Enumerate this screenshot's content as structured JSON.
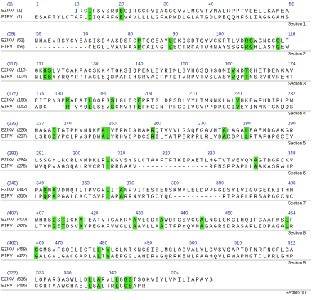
{
  "identical_color": "#4ddc2a",
  "sections": [
    {
      "label": "Section 1",
      "start": "(1)",
      "ticks": [
        1,
        10,
        20,
        30,
        40,
        58
      ],
      "rows": [
        {
          "name": "EZIKV",
          "pos": "(1)",
          "seq": "---------IRCIFSVSRDEGIRGCRVIAGGGVVLMGVTVMALRPPTVDELLKAMEA"
        },
        {
          "name": "E1RV",
          "pos": "(1)",
          "seq": "ESAFTYLCTAFLIIQARFGEVAVLLLLGFAPWDLGLATGDLPEQQHFSLIAGGGAHS"
        }
      ]
    },
    {
      "label": "Section 2",
      "start": "(59)",
      "ticks": [
        59,
        70,
        80,
        90,
        100,
        116
      ],
      "rows": [
        {
          "name": "EZIKV",
          "pos": "(52)",
          "seq": "NHAEVRSYCYEASISDMASDSRCPTQGEAYLDKQSDTQYVCKRTLVDRGWGNGCGLF"
        },
        {
          "name": "E1RV",
          "pos": "(59)",
          "seq": "------------CEGLLVAVPAAPCAINGTLECTRCATVHNAYSSGGRGHLASYGEW"
        }
      ]
    },
    {
      "label": "Section 3",
      "start": "(117)",
      "ticks": [
        117,
        130,
        140,
        150,
        160,
        174
      ],
      "rows": [
        {
          "name": "EZIKV",
          "pos": "(110)",
          "seq": "GKGSLVTCAKFACSKKMTGKSIQPENLEYRIMLSVHGSQHSGMIVNDTGHETDENKAV"
        },
        {
          "name": "E1RV",
          "pos": "(104)",
          "seq": "NLGSYYRQYRPTACLEQDPAFCHSRVAGFPTDTVRPVTVSLASYVQPTNSRVRVREHT"
        }
      ]
    },
    {
      "label": "Section 4",
      "start": "(175)",
      "ticks": [
        175,
        180,
        190,
        200,
        210,
        220,
        232
      ],
      "rows": [
        {
          "name": "EZIKV",
          "pos": "(168)",
          "seq": "EITPNSPRAEATLGGFGSLGLDCEPRTGLDFSDLYYLTMNNKHWLVHKEWFHDIPLPW"
        },
        {
          "name": "E1RV",
          "pos": "(162)",
          "seq": "ADC---TRTVMQLLSSVSCNVTTEFHGCNTPRCGIVGVPPDPGGIVEYINMKTGNQQS"
        }
      ]
    },
    {
      "label": "Section 5",
      "start": "(233)",
      "ticks": [
        233,
        240,
        250,
        260,
        270,
        280,
        290
      ],
      "rows": [
        {
          "name": "EZIKV",
          "pos": "(226)",
          "seq": "HAGADTGTPHWNNKEALVEFKDAHAKRQTVVVLGSQEGAVHTALAGALEAEMDGAKGR"
        },
        {
          "name": "E1RV",
          "pos": "(217)",
          "seq": "LSRGDYPCLPVSPDWALYRHVCPDCSRILYATPERPRLRLVDADDPLLRTAFGPGCEV"
        }
      ]
    },
    {
      "label": "Section 6",
      "start": "(291)",
      "ticks": [
        291,
        300,
        310,
        320,
        330,
        348
      ],
      "rows": [
        {
          "name": "EZIKV",
          "pos": "(284)",
          "seq": "LSSGHLKCRLKMDKLRLKGVSYSLCTAAFTFTKIPAETLHGTVTVEVQYAGTDGPCKV"
        },
        {
          "name": "E1RV",
          "pos": "(275)",
          "seq": "WVQPVAGSQALRVCRTLRRGAAV----------------RFNSPPAPLLAAKASRWHP"
        }
      ]
    },
    {
      "label": "Section 7",
      "start": "(349)",
      "ticks": [
        349,
        360,
        370,
        380,
        390,
        406
      ],
      "rows": [
        {
          "name": "EZIKV",
          "pos": "(342)",
          "seq": "PAQMAVDMQTLTPVGRLITANPVITESTENSKMMLELDPPFGDSYIVIGVGEKKITHH"
        },
        {
          "name": "E1RV",
          "pos": "(310)",
          "seq": "LPQRAPGALCACTSVPLAPARRNVRTGCYQC-----------RTPAFLPRSAPGGCNC"
        }
      ]
    },
    {
      "label": "Section 8",
      "start": "(407)",
      "ticks": [
        407,
        420,
        430,
        440,
        450,
        464
      ],
      "rows": [
        {
          "name": "EZIKV",
          "pos": "(400)",
          "seq": "WHRSGSTIGKAFEATVRGAKRMAVLGDTAWDFGSVGGALNSLGKGIHQIFGAAFKSLF"
        },
        {
          "name": "E1RV",
          "pos": "(370)",
          "seq": "LTVNGETDSVAYPEGKFVWGLLAAVLLAAITPPYQVNAGAGRSDRASARLIDPAGALR"
        }
      ]
    },
    {
      "label": "Section 9",
      "start": "(465)",
      "ticks": [
        465,
        470,
        480,
        490,
        500,
        510,
        522
      ],
      "rows": [
        {
          "name": "EZIKV",
          "pos": "(458)",
          "seq": "GGMSWFSQILIGTLLMWLGLNTKNGSISLMCLAGVALYLGVSVQAPTDFNRFNCPLGA"
        },
        {
          "name": "E1RV",
          "pos": "(422)",
          "seq": "GALGVLGACGAPLALTWAEPGGLAHDRVGQRRKENLFAAHQVLRWAPNGTCLPRLGHP"
        }
      ]
    },
    {
      "label": "Section 10",
      "start": "(523)",
      "ticks": [
        523,
        530,
        540,
        554
      ],
      "rows": [
        {
          "name": "EZIKV",
          "pos": "(516)",
          "seq": "LQPARSASWLLDLLARVLLGGSTSQKVIYLVMILIAPAYS"
        },
        {
          "name": "E1RV",
          "pos": "(466)",
          "seq": "CCRTAAWCHAELLSALRRLCGSAPR---------------"
        }
      ]
    }
  ]
}
